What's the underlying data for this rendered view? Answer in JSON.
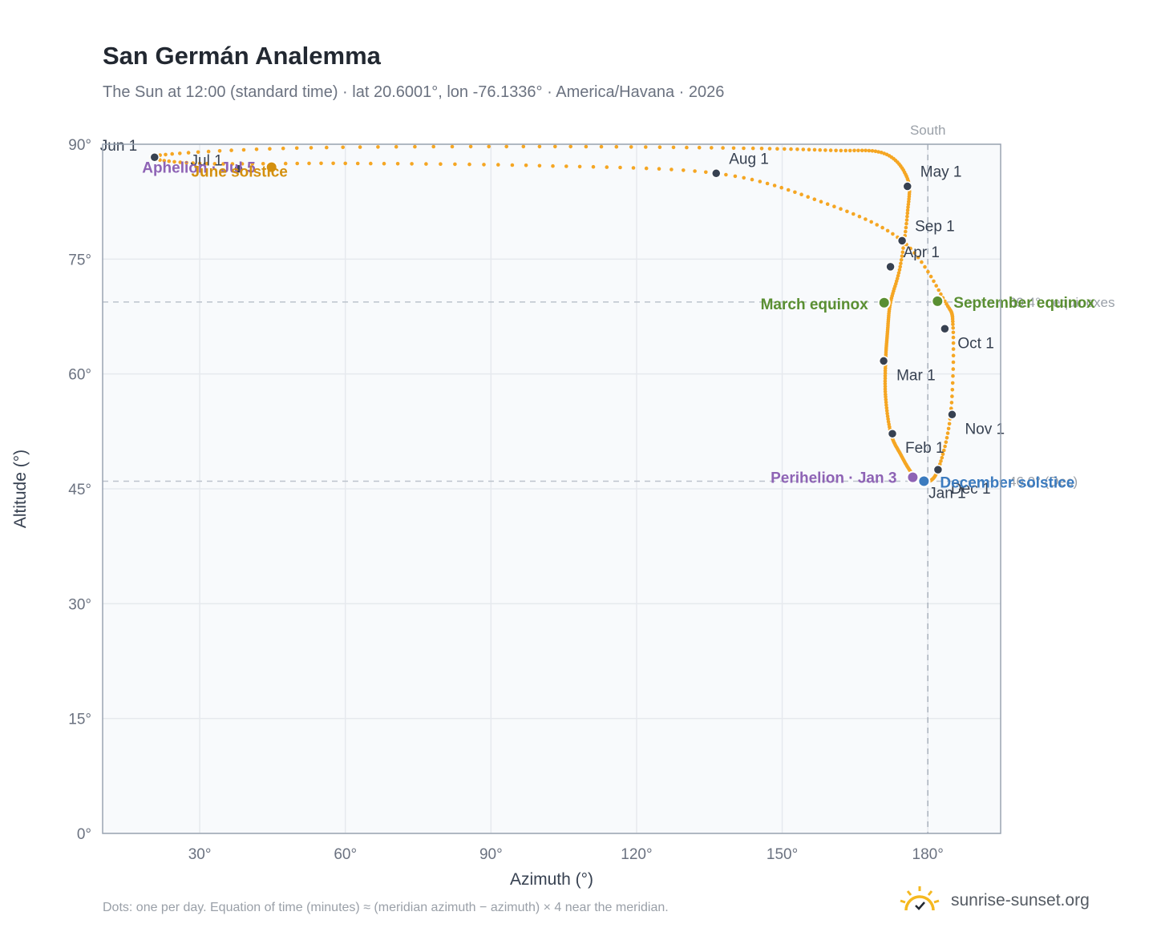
{
  "title": "San Germán Analemma",
  "subtitle": "The Sun at 12:00 (standard time) · lat 20.6001°, lon -76.1336° · America/Havana · 2026",
  "footnote": "Dots: one per day. Equation of time (minutes) ≈ (meridian azimuth − azimuth) × 4 near the meridian.",
  "brand": {
    "text": "sunrise-sunset.org",
    "icon": "sunrise-logo-icon"
  },
  "colors": {
    "curve": "#f5a623",
    "month_dot": "#374151",
    "equinox": "#5a8f32",
    "perihelion": "#8e63b5",
    "december_solstice": "#3b7bbf",
    "june_solstice": "#d4900f",
    "grid": "#e6e9ee",
    "plot_bg": "#f8fafc",
    "frame": "#9aa4b2"
  },
  "chart_data": {
    "type": "scatter",
    "title": "San Germán Analemma",
    "subtitle": "The Sun at 12:00 (standard time) · lat 20.6001°, lon -76.1336° · America/Havana · 2026",
    "xlabel": "Azimuth (°)",
    "ylabel": "Altitude (°)",
    "xlim": [
      10,
      195
    ],
    "ylim": [
      0,
      90
    ],
    "xticks": [
      30,
      60,
      90,
      120,
      150,
      180
    ],
    "xtick_labels": [
      "30°",
      "60°",
      "90°",
      "120°",
      "150°",
      "180°"
    ],
    "yticks": [
      0,
      15,
      30,
      45,
      60,
      75,
      90
    ],
    "ytick_labels": [
      "0°",
      "15°",
      "30°",
      "45°",
      "60°",
      "75°",
      "90°"
    ],
    "grid": true,
    "series": [
      {
        "x": [
          179.5,
          176.8,
          174.4,
          172.4,
          171.3,
          171.3,
          171.7,
          172.3,
          174.3,
          175.8,
          175.8,
          171.0,
          160.0,
          140.0,
          100.0,
          50.0,
          21.0,
          30.0,
          60.0,
          100.0,
          136.4,
          158.0,
          174.7,
          183.5,
          185.2,
          184.7,
          182.1,
          179.5
        ],
        "y": [
          45.9,
          47.0,
          49.5,
          52.2,
          57.0,
          61.7,
          65.5,
          69.3,
          74.0,
          81.0,
          85.5,
          88.8,
          89.2,
          89.5,
          89.7,
          89.5,
          88.5,
          87.5,
          87.5,
          87.2,
          86.2,
          82.5,
          77.4,
          69.5,
          66.0,
          54.8,
          47.5,
          45.9
        ]
      }
    ],
    "month_points": [
      {
        "label": "Jan 1",
        "x": 179.5,
        "y": 45.9
      },
      {
        "label": "Feb 1",
        "x": 172.7,
        "y": 52.2
      },
      {
        "label": "Mar 1",
        "x": 170.9,
        "y": 61.7
      },
      {
        "label": "Apr 1",
        "x": 172.3,
        "y": 74.0
      },
      {
        "label": "May 1",
        "x": 175.8,
        "y": 84.5
      },
      {
        "label": "Jun 1",
        "x": 20.7,
        "y": 88.3
      },
      {
        "label": "Jul 1",
        "x": 38.0,
        "y": 86.8
      },
      {
        "label": "Aug 1",
        "x": 136.4,
        "y": 86.2
      },
      {
        "label": "Sep 1",
        "x": 174.7,
        "y": 77.4
      },
      {
        "label": "Oct 1",
        "x": 183.5,
        "y": 65.9
      },
      {
        "label": "Nov 1",
        "x": 185.0,
        "y": 54.7
      },
      {
        "label": "Dec 1",
        "x": 182.1,
        "y": 47.5
      }
    ],
    "special_points": [
      {
        "label": "March equinox",
        "x": 171.0,
        "y": 69.3,
        "kind": "equinox"
      },
      {
        "label": "September equinox",
        "x": 182.0,
        "y": 69.5,
        "kind": "equinox"
      },
      {
        "label": "Perihelion · Jan 3",
        "x": 176.9,
        "y": 46.5,
        "kind": "perihelion"
      },
      {
        "label": "December solstice",
        "x": 179.2,
        "y": 46.0,
        "kind": "december_solstice"
      },
      {
        "label": "Aphelion · Jul 5",
        "x": 44.8,
        "y": 87.0,
        "kind": "perihelion"
      },
      {
        "label": "June solstice",
        "x": 44.8,
        "y": 87.0,
        "kind": "june_solstice"
      }
    ],
    "reference_lines": [
      {
        "axis": "x",
        "value": 180,
        "label": "South"
      },
      {
        "axis": "y",
        "value": 69.4,
        "label": "69.4° · equinoxes"
      },
      {
        "axis": "y",
        "value": 46.0,
        "label": "46.0° (Dec)"
      }
    ]
  }
}
